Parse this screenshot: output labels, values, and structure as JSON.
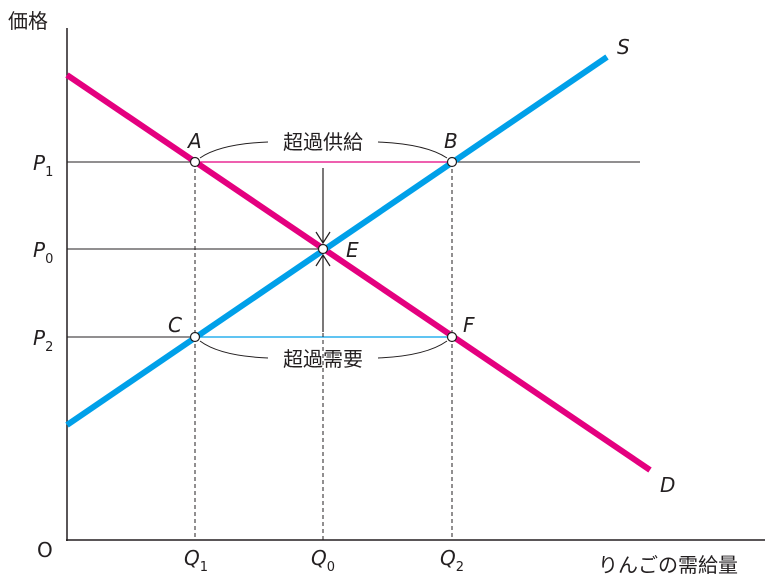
{
  "axes": {
    "y_label": "価格",
    "origin": "O",
    "x_label": "りんごの需給量"
  },
  "price_labels": [
    {
      "letter": "P",
      "subscript": "1"
    },
    {
      "letter": "P",
      "subscript": "0"
    },
    {
      "letter": "P",
      "subscript": "2"
    }
  ],
  "quantity_labels": [
    {
      "letter": "Q",
      "subscript": "1"
    },
    {
      "letter": "Q",
      "subscript": "0"
    },
    {
      "letter": "Q",
      "subscript": "2"
    }
  ],
  "points": {
    "A": "A",
    "B": "B",
    "C": "C",
    "E": "E",
    "F": "F"
  },
  "curves": {
    "supply": "S",
    "demand": "D"
  },
  "annotations": {
    "excess_supply": "超過供給",
    "excess_demand": "超過需要"
  }
}
